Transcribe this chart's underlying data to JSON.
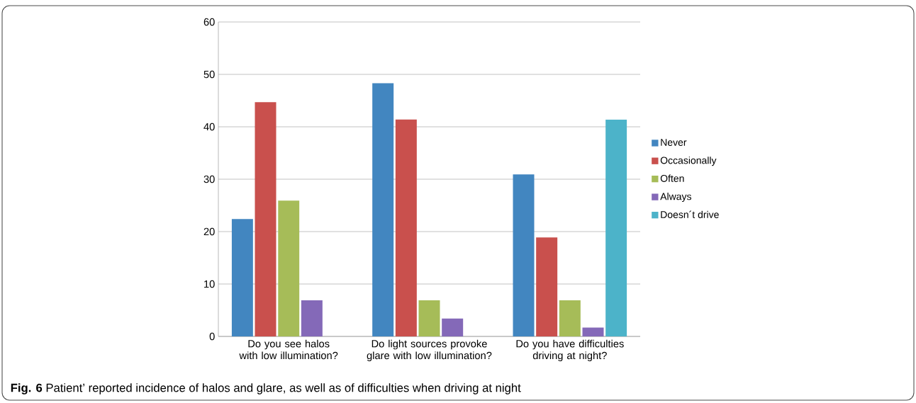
{
  "chart_data": {
    "type": "bar",
    "categories": [
      "Do you see halos with low illumination?",
      "Do light sources provoke glare with low illumination?",
      "Do you have difficulties driving at night?"
    ],
    "series": [
      {
        "name": "Never",
        "color": "#4286c0",
        "values": [
          22.4,
          48.3,
          30.9
        ]
      },
      {
        "name": "Occasionally",
        "color": "#c9504d",
        "values": [
          44.7,
          41.4,
          18.9
        ]
      },
      {
        "name": "Often",
        "color": "#a6bc58",
        "values": [
          25.9,
          6.9,
          6.9
        ]
      },
      {
        "name": "Always",
        "color": "#8469b8",
        "values": [
          6.9,
          3.4,
          1.7
        ]
      },
      {
        "name": "Doesn´t drive",
        "color": "#4cb3c9",
        "values": [
          null,
          null,
          41.4
        ]
      }
    ],
    "ylim": [
      0,
      60
    ],
    "yticks": [
      0,
      10,
      20,
      30,
      40,
      50,
      60
    ],
    "grid": "y",
    "legend": "right",
    "annotations": [
      "**Fig. 6** Patient’ reported incidence of halos and glare, as well as of difficulties when driving at night"
    ]
  }
}
